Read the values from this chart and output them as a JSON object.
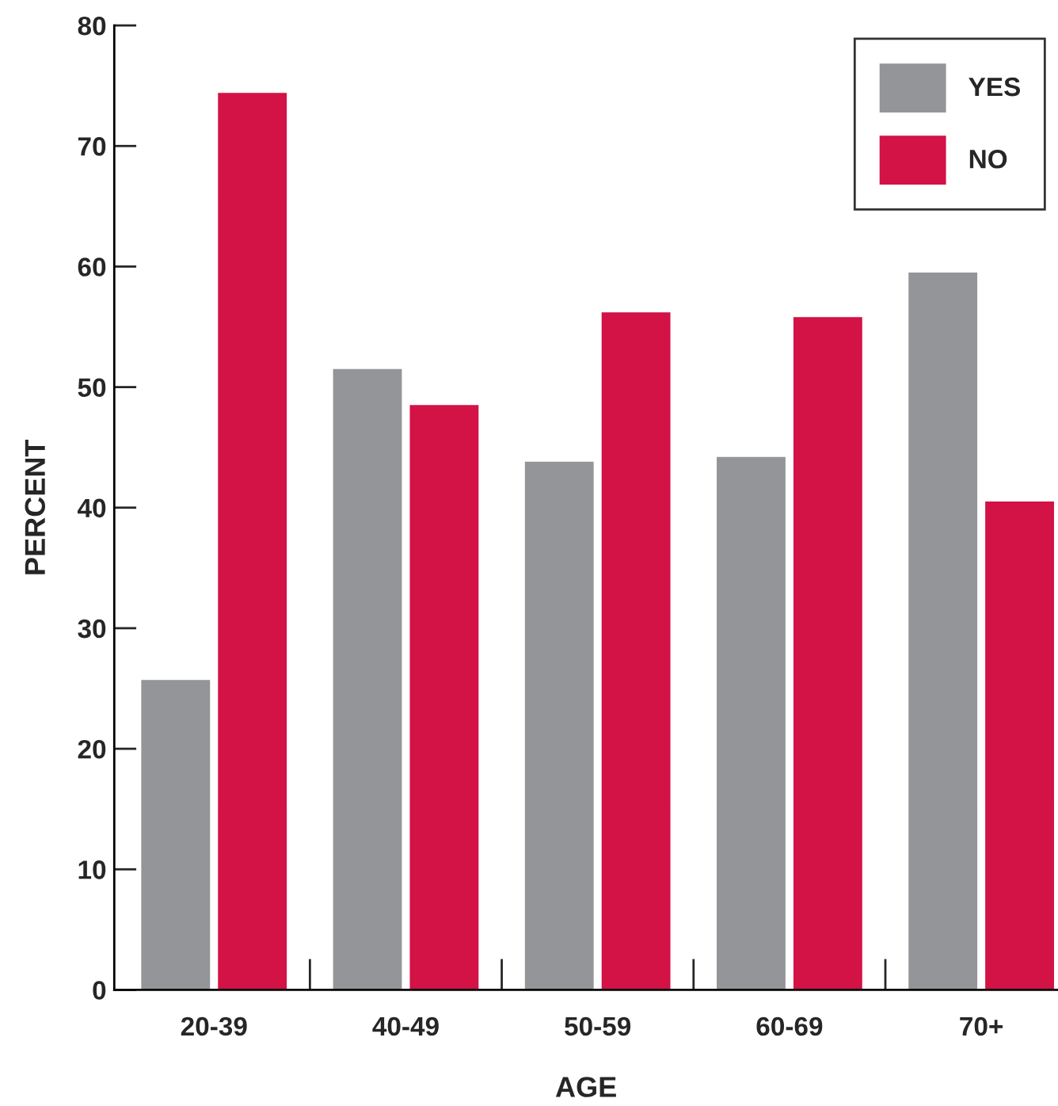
{
  "chart_data": {
    "type": "bar",
    "xlabel": "AGE",
    "ylabel": "PERCENT",
    "categories": [
      "20-39",
      "40-49",
      "50-59",
      "60-69",
      "70+"
    ],
    "series": [
      {
        "name": "YES",
        "color": "#939598",
        "values": [
          25.8,
          51.6,
          43.9,
          44.3,
          59.6
        ]
      },
      {
        "name": "NO",
        "color": "#d31245",
        "values": [
          74.5,
          48.6,
          56.3,
          55.9,
          40.6
        ]
      }
    ],
    "ylim": [
      0,
      80
    ],
    "yticks": [
      0,
      10,
      20,
      30,
      40,
      50,
      60,
      70,
      80
    ],
    "grid": false,
    "legend": "top right"
  }
}
